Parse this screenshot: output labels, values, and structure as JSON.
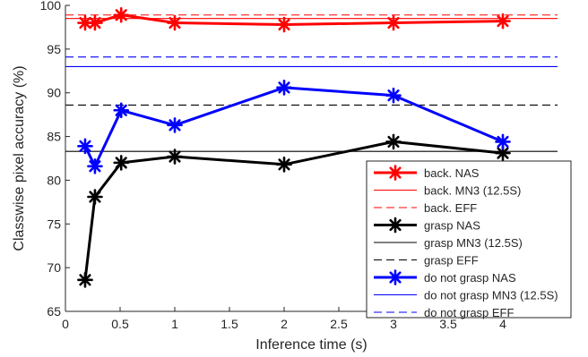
{
  "chart_data": {
    "type": "line",
    "xlabel": "Inference time (s)",
    "ylabel": "Classwise pixel accuracy (%)",
    "xlim": [
      0,
      4.5
    ],
    "ylim": [
      65,
      100
    ],
    "xticks": [
      0,
      0.5,
      1,
      1.5,
      2,
      2.5,
      3,
      3.5,
      4
    ],
    "xtick_labels": [
      "0",
      "0.5",
      "1",
      "1.5",
      "2",
      "2.5",
      "3",
      "3.5",
      "4"
    ],
    "yticks": [
      65,
      70,
      75,
      80,
      85,
      90,
      95,
      100
    ],
    "ytick_labels": [
      "65",
      "70",
      "75",
      "80",
      "85",
      "90",
      "95",
      "100"
    ],
    "grid": false,
    "legend_position": "bottom-right",
    "series": [
      {
        "name": "back. NAS",
        "kind": "line-marker",
        "color": "#ff0000",
        "dash": "solid",
        "x": [
          0.18,
          0.27,
          0.51,
          1.0,
          2.0,
          3.0,
          4.0
        ],
        "y": [
          98.0,
          98.0,
          98.9,
          98.0,
          97.8,
          98.0,
          98.2
        ]
      },
      {
        "name": "back. MN3 (12.5S)",
        "kind": "hline",
        "color": "#ff0000",
        "dash": "solid",
        "y": 98.5
      },
      {
        "name": "back. EFF",
        "kind": "hline",
        "color": "#ff0000",
        "dash": "dashed",
        "y": 98.9
      },
      {
        "name": "grasp NAS",
        "kind": "line-marker",
        "color": "#000000",
        "dash": "solid",
        "x": [
          0.18,
          0.27,
          0.51,
          1.0,
          2.0,
          3.0,
          4.0
        ],
        "y": [
          68.6,
          78.1,
          82.0,
          82.7,
          81.8,
          84.4,
          83.1
        ]
      },
      {
        "name": "grasp MN3 (12.5S)",
        "kind": "hline",
        "color": "#000000",
        "dash": "solid",
        "y": 83.3
      },
      {
        "name": "grasp EFF",
        "kind": "hline",
        "color": "#000000",
        "dash": "dashed",
        "y": 88.6
      },
      {
        "name": "do not grasp NAS",
        "kind": "line-marker",
        "color": "#0000ff",
        "dash": "solid",
        "x": [
          0.18,
          0.27,
          0.51,
          1.0,
          2.0,
          3.0,
          4.0
        ],
        "y": [
          83.9,
          81.6,
          88.0,
          86.3,
          90.6,
          89.7,
          84.4
        ]
      },
      {
        "name": "do not grasp MN3 (12.5S)",
        "kind": "hline",
        "color": "#0000ff",
        "dash": "solid",
        "y": 93.0
      },
      {
        "name": "do not grasp EFF",
        "kind": "hline",
        "color": "#0000ff",
        "dash": "dashed",
        "y": 94.1
      }
    ]
  }
}
